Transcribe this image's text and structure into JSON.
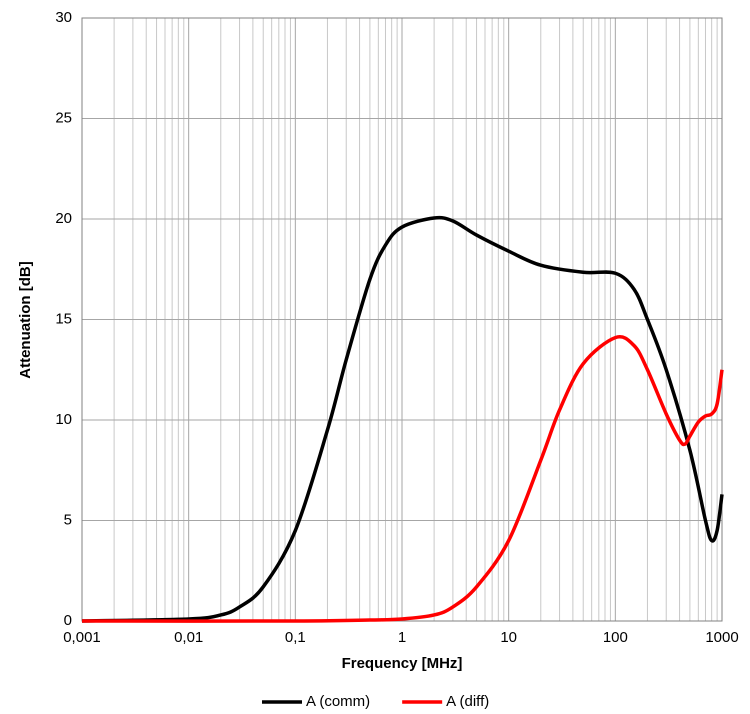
{
  "chart_data": {
    "type": "line",
    "log_x": true,
    "grid": true,
    "minor_grid": true,
    "legend": "bottom",
    "xlabel": "Frequency [MHz]",
    "ylabel": "Attenuation [dB]",
    "xlim": [
      0.001,
      1000
    ],
    "ylim": [
      0,
      30
    ],
    "xticks": [
      {
        "value": 0.001,
        "label": "0,001"
      },
      {
        "value": 0.01,
        "label": "0,01"
      },
      {
        "value": 0.1,
        "label": "0,1"
      },
      1,
      10,
      100,
      1000
    ],
    "yticks": [
      0,
      5,
      10,
      15,
      20,
      25,
      30
    ],
    "series": [
      {
        "name": "A (comm)",
        "color": "#000000",
        "x": [
          0.001,
          0.01,
          0.02,
          0.03,
          0.05,
          0.1,
          0.2,
          0.3,
          0.5,
          0.7,
          1,
          2,
          3,
          5,
          10,
          20,
          50,
          100,
          150,
          200,
          300,
          500,
          700,
          800,
          900,
          1000
        ],
        "values": [
          0,
          0.1,
          0.3,
          0.7,
          1.7,
          4.5,
          9.5,
          13,
          17,
          18.7,
          19.6,
          20.05,
          19.9,
          19.2,
          18.4,
          17.7,
          17.35,
          17.3,
          16.5,
          15,
          12.5,
          8.5,
          5,
          4,
          4.5,
          6.3
        ]
      },
      {
        "name": "A (diff)",
        "color": "#ff0000",
        "x": [
          0.001,
          0.1,
          0.5,
          1,
          2,
          3,
          5,
          10,
          20,
          30,
          50,
          100,
          150,
          200,
          300,
          400,
          450,
          500,
          600,
          700,
          800,
          900,
          1000
        ],
        "values": [
          0,
          0,
          0.05,
          0.1,
          0.3,
          0.7,
          1.7,
          4,
          8,
          10.5,
          12.8,
          14.1,
          13.7,
          12.5,
          10.3,
          9,
          8.8,
          9.2,
          9.9,
          10.2,
          10.3,
          10.8,
          12.5
        ]
      }
    ]
  }
}
